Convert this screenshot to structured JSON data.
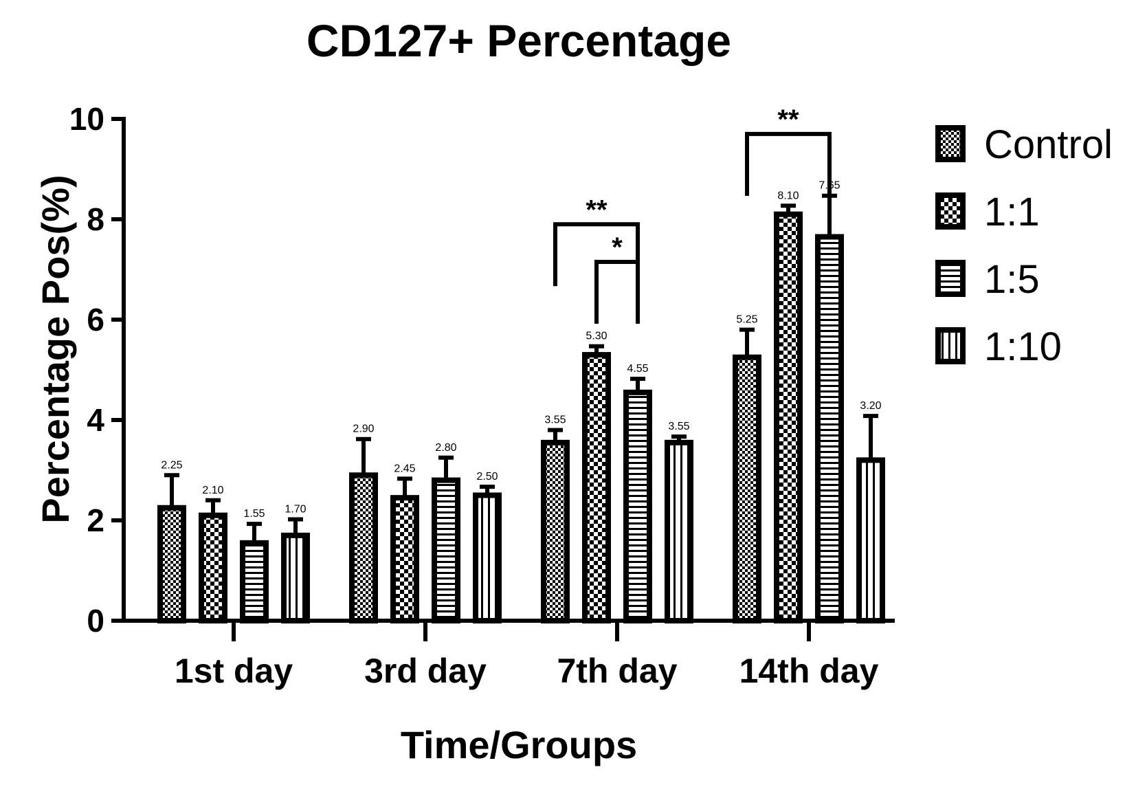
{
  "chart_data": {
    "type": "bar",
    "title": "CD127+ Percentage",
    "xlabel": "Time/Groups",
    "ylabel": "Percentage Pos(%)",
    "ylim": [
      0,
      10
    ],
    "yticks": [
      0,
      2,
      4,
      6,
      8,
      10
    ],
    "categories": [
      "1st day",
      "3rd day",
      "7th day",
      "14th day"
    ],
    "series": [
      {
        "name": "Control",
        "pattern": "checker-small",
        "values": [
          2.25,
          2.9,
          3.55,
          5.25
        ],
        "errors": [
          0.65,
          0.72,
          0.25,
          0.55
        ],
        "labels": [
          "2.25",
          "2.90",
          "3.55",
          "5.25"
        ]
      },
      {
        "name": "1:1",
        "pattern": "checker-large",
        "values": [
          2.1,
          2.45,
          5.3,
          8.1
        ],
        "errors": [
          0.3,
          0.38,
          0.17,
          0.17
        ],
        "labels": [
          "2.10",
          "2.45",
          "5.30",
          "8.10"
        ]
      },
      {
        "name": "1:5",
        "pattern": "horizontal-stripes",
        "values": [
          1.55,
          2.8,
          4.55,
          7.65
        ],
        "errors": [
          0.38,
          0.45,
          0.27,
          0.82
        ],
        "labels": [
          "1.55",
          "2.80",
          "4.55",
          "7.65"
        ]
      },
      {
        "name": "1:10",
        "pattern": "vertical-stripes",
        "values": [
          1.7,
          2.5,
          3.55,
          3.2
        ],
        "errors": [
          0.32,
          0.17,
          0.12,
          0.88
        ],
        "labels": [
          "1.70",
          "2.50",
          "3.55",
          "3.20"
        ]
      }
    ],
    "significance": [
      {
        "category": "7th day",
        "from": "Control",
        "to": "1:5",
        "label": "**",
        "y": 7.9
      },
      {
        "category": "7th day",
        "from": "1:1",
        "to": "1:5",
        "label": "*",
        "y": 7.15
      },
      {
        "category": "14th day",
        "from": "Control",
        "to": "1:5",
        "label": "**",
        "y": 9.7
      }
    ],
    "legend_position": "right",
    "colors": {
      "ink": "#000000",
      "background": "#ffffff"
    }
  }
}
